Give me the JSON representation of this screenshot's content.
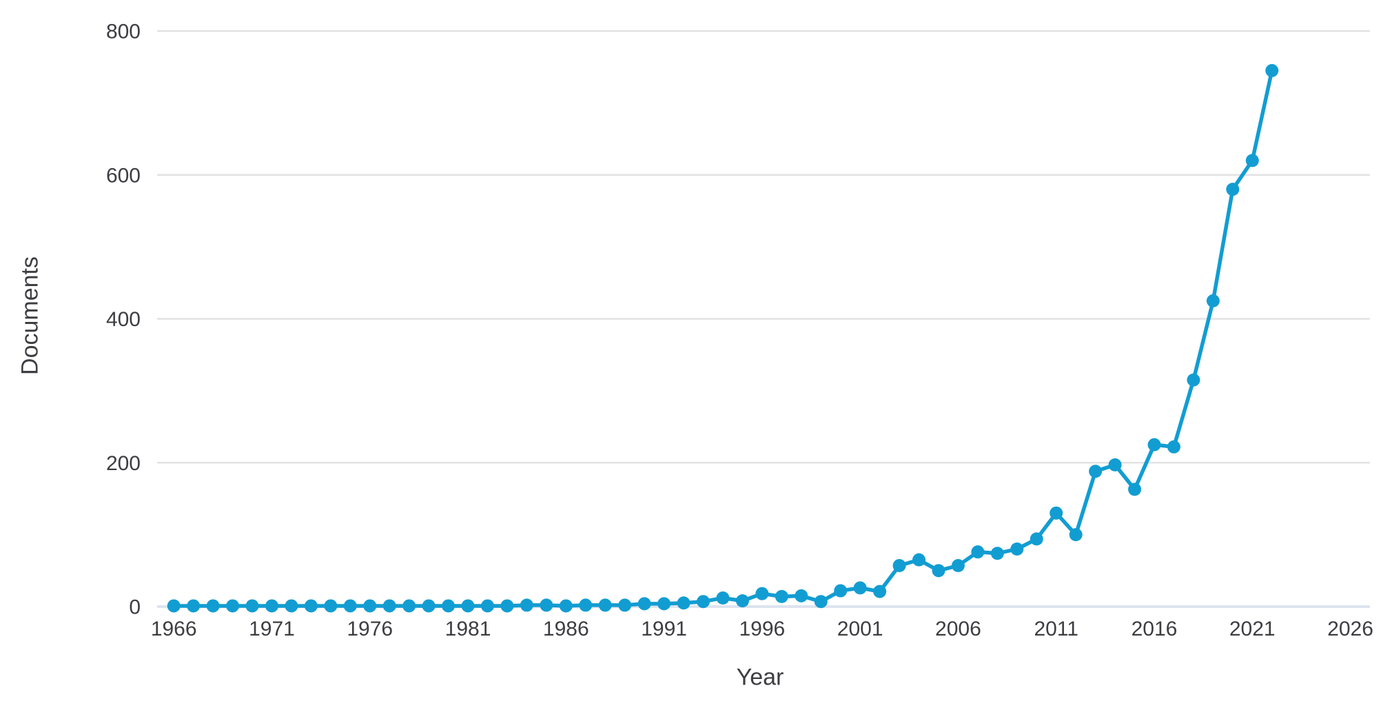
{
  "chart_data": {
    "type": "line",
    "title": "",
    "xlabel": "Year",
    "ylabel": "Documents",
    "x": [
      1966,
      1967,
      1968,
      1969,
      1970,
      1971,
      1972,
      1973,
      1974,
      1975,
      1976,
      1977,
      1978,
      1979,
      1980,
      1981,
      1982,
      1983,
      1984,
      1985,
      1986,
      1987,
      1988,
      1989,
      1990,
      1991,
      1992,
      1993,
      1994,
      1995,
      1996,
      1997,
      1998,
      1999,
      2000,
      2001,
      2002,
      2003,
      2004,
      2005,
      2006,
      2007,
      2008,
      2009,
      2010,
      2011,
      2012,
      2013,
      2014,
      2015,
      2016,
      2017,
      2018,
      2019,
      2020,
      2021,
      2022
    ],
    "values": [
      1,
      1,
      1,
      1,
      1,
      1,
      1,
      1,
      1,
      1,
      1,
      1,
      1,
      1,
      1,
      1,
      1,
      1,
      2,
      2,
      1,
      2,
      2,
      2,
      4,
      4,
      5,
      7,
      12,
      8,
      18,
      14,
      15,
      7,
      22,
      26,
      21,
      57,
      65,
      50,
      57,
      76,
      74,
      80,
      94,
      130,
      100,
      188,
      197,
      163,
      225,
      222,
      315,
      425,
      580,
      620,
      745
    ],
    "x_ticks": [
      1966,
      1971,
      1976,
      1981,
      1986,
      1991,
      1996,
      2001,
      2006,
      2011,
      2016,
      2021,
      2026
    ],
    "y_ticks": [
      0,
      200,
      400,
      600,
      800
    ],
    "xlim": [
      1965.15,
      2027.0
    ],
    "ylim": [
      0,
      800
    ],
    "grid": true,
    "legend_position": "none",
    "series_name": "Documents",
    "colors": {
      "line": "#129dd2",
      "point": "#129dd2",
      "grid": "#e2e2e2",
      "zero_line": "#dde4ee",
      "tick_label": "#3d3d42",
      "axis_title": "#3d3d42",
      "background": "#ffffff"
    }
  }
}
